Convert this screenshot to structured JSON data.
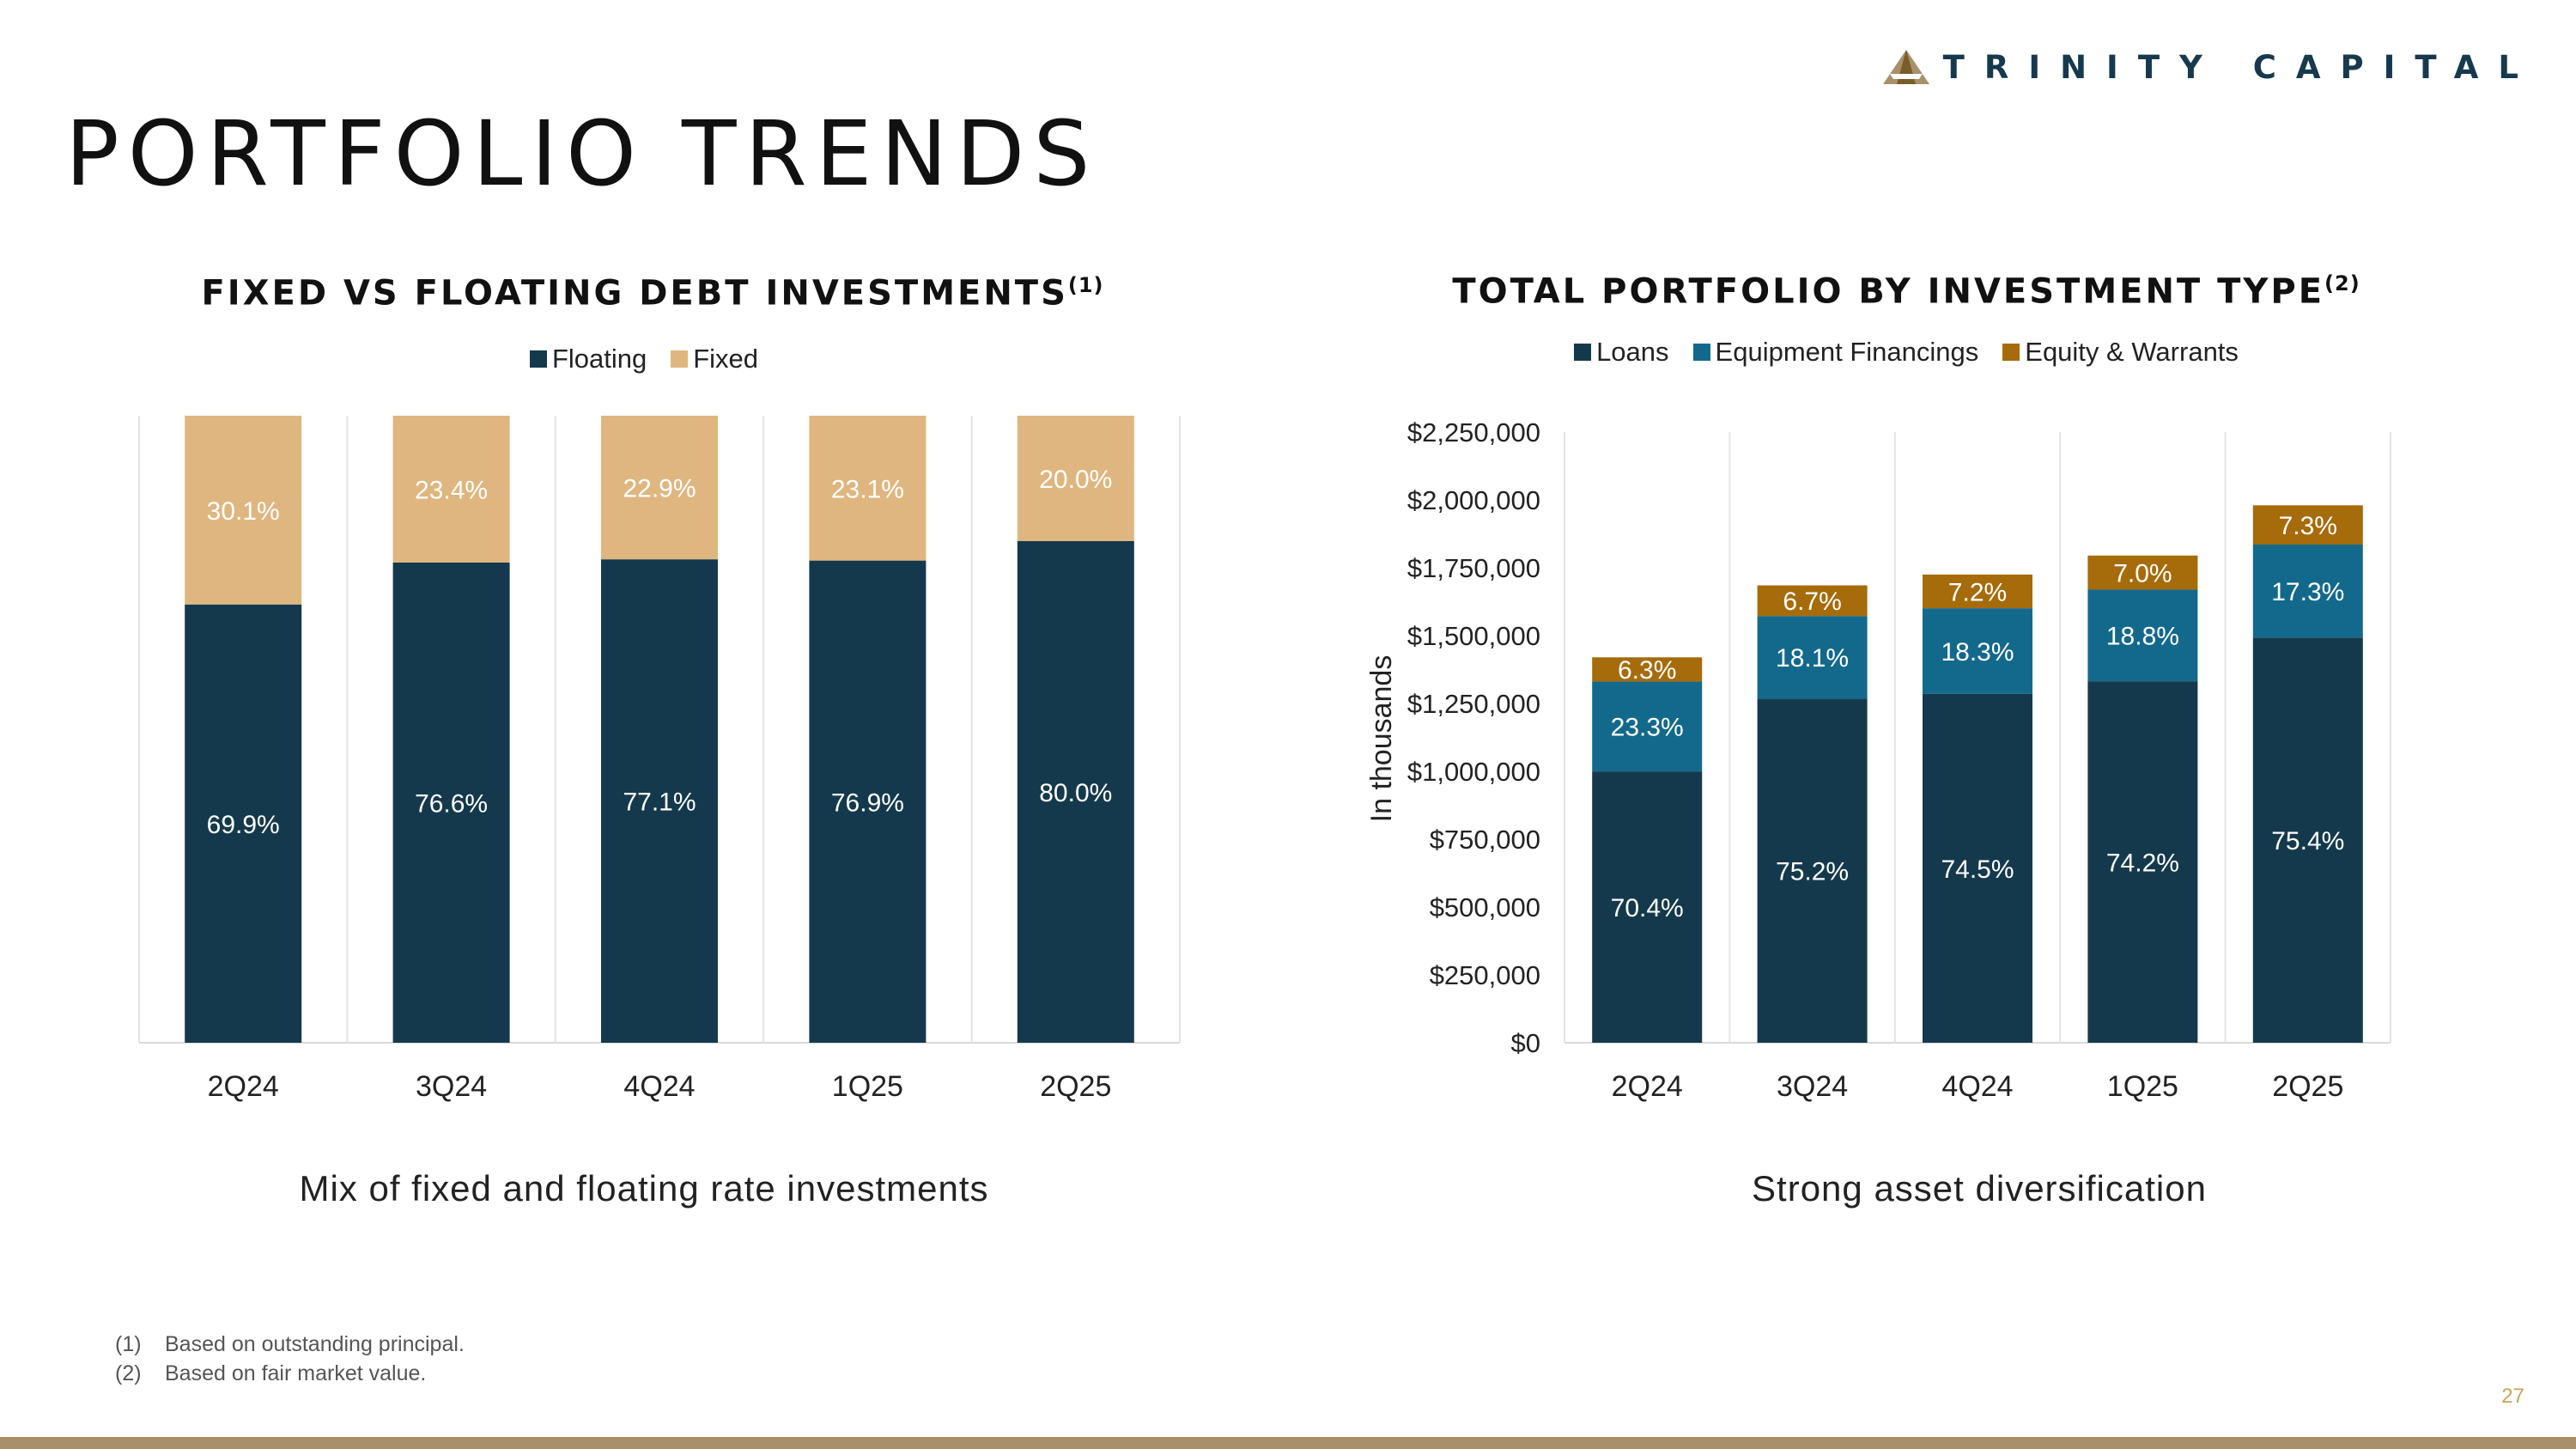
{
  "logo": {
    "text": "TRINITY CAPITAL"
  },
  "page": {
    "title": "PORTFOLIO TRENDS",
    "number": "27"
  },
  "colors": {
    "floating": "#15394c",
    "fixed": "#dfb67f",
    "loans": "#15394c",
    "equipment": "#13698c",
    "equity": "#a66b0a",
    "accent": "#a8916a"
  },
  "chart_data": [
    {
      "type": "bar",
      "stacked": true,
      "title": "FIXED VS FLOATING DEBT INVESTMENTS",
      "title_sup": "(1)",
      "caption": "Mix of fixed and floating rate investments",
      "categories": [
        "2Q24",
        "3Q24",
        "4Q24",
        "1Q25",
        "2Q25"
      ],
      "series": [
        {
          "name": "Floating",
          "values": [
            69.9,
            76.6,
            77.1,
            76.9,
            80.0
          ],
          "labels": [
            "69.9%",
            "76.6%",
            "77.1%",
            "76.9%",
            "80.0%"
          ]
        },
        {
          "name": "Fixed",
          "values": [
            30.1,
            23.4,
            22.9,
            23.1,
            20.0
          ],
          "labels": [
            "30.1%",
            "23.4%",
            "22.9%",
            "23.1%",
            "20.0%"
          ]
        }
      ],
      "ylim": [
        0,
        100
      ],
      "legend": "top-center",
      "grid": false
    },
    {
      "type": "bar",
      "stacked": true,
      "title": "TOTAL PORTFOLIO BY INVESTMENT TYPE",
      "title_sup": "(2)",
      "caption": "Strong asset diversification",
      "ylabel": "In thousands",
      "categories": [
        "2Q24",
        "3Q24",
        "4Q24",
        "1Q25",
        "2Q25"
      ],
      "totals": [
        1420000,
        1685000,
        1725000,
        1795000,
        1980000
      ],
      "series": [
        {
          "name": "Loans",
          "labels": [
            "70.4%",
            "75.2%",
            "74.5%",
            "74.2%",
            "75.4%"
          ]
        },
        {
          "name": "Equipment Financings",
          "labels": [
            "23.3%",
            "18.1%",
            "18.3%",
            "18.8%",
            "17.3%"
          ]
        },
        {
          "name": "Equity & Warrants",
          "labels": [
            "6.3%",
            "6.7%",
            "7.2%",
            "7.0%",
            "7.3%"
          ]
        }
      ],
      "ylim": [
        0,
        2250000
      ],
      "yticks": [
        "$0",
        "$250,000",
        "$500,000",
        "$750,000",
        "$1,000,000",
        "$1,250,000",
        "$1,500,000",
        "$1,750,000",
        "$2,000,000",
        "$2,250,000"
      ],
      "legend": "top-center",
      "grid": false
    }
  ],
  "footnotes": [
    {
      "num": "(1)",
      "text": "Based on outstanding principal."
    },
    {
      "num": "(2)",
      "text": "Based on fair market value."
    }
  ]
}
